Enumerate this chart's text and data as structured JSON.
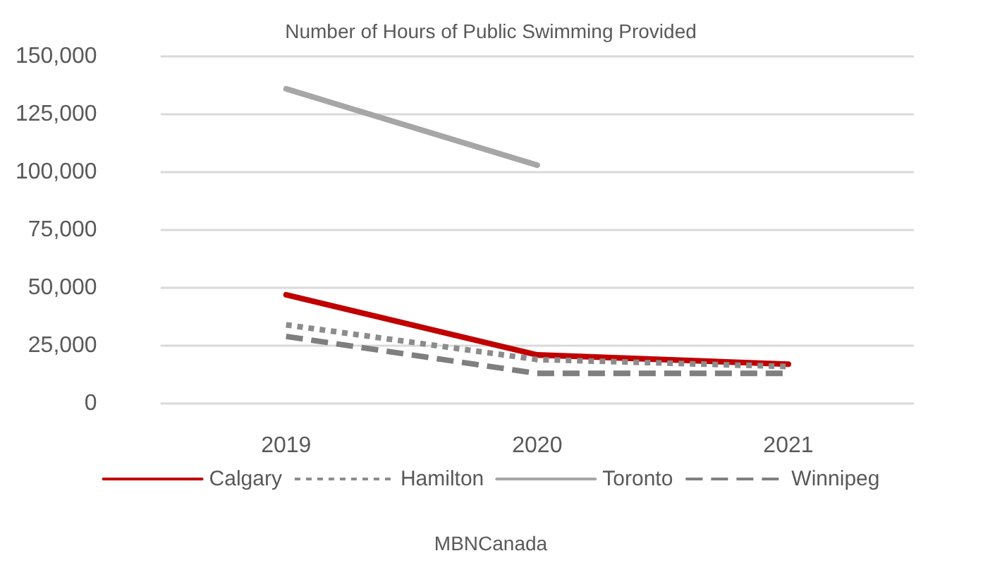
{
  "chart_data": {
    "type": "line",
    "title": "Number of Hours of Public Swimming Provided",
    "categories": [
      "2019",
      "2020",
      "2021"
    ],
    "series": [
      {
        "name": "Calgary",
        "color": "#c00000",
        "line_style": "solid",
        "values": [
          47000,
          21000,
          17000
        ]
      },
      {
        "name": "Hamilton",
        "color": "#8c8c8c",
        "line_style": "dotted",
        "values": [
          34000,
          19000,
          16000
        ]
      },
      {
        "name": "Toronto",
        "color": "#a6a6a6",
        "line_style": "solid",
        "values": [
          136000,
          103000,
          null
        ]
      },
      {
        "name": "Winnipeg",
        "color": "#7f7f7f",
        "line_style": "dashed",
        "values": [
          29000,
          13000,
          13000
        ]
      }
    ],
    "ylim": [
      0,
      150000
    ],
    "yticks": [
      0,
      {
        "value": 25000,
        "label": "25,000"
      },
      {
        "value": 50000,
        "label": "50,000"
      },
      {
        "value": 75000,
        "label": "75,000"
      },
      {
        "value": 100000,
        "label": "100,000"
      },
      {
        "value": 125000,
        "label": "125,000"
      },
      {
        "value": 150000,
        "label": "150,000"
      }
    ],
    "grid": "y",
    "legend": "bottom",
    "marker": "none",
    "annotations": [
      "MBNCanada"
    ]
  }
}
